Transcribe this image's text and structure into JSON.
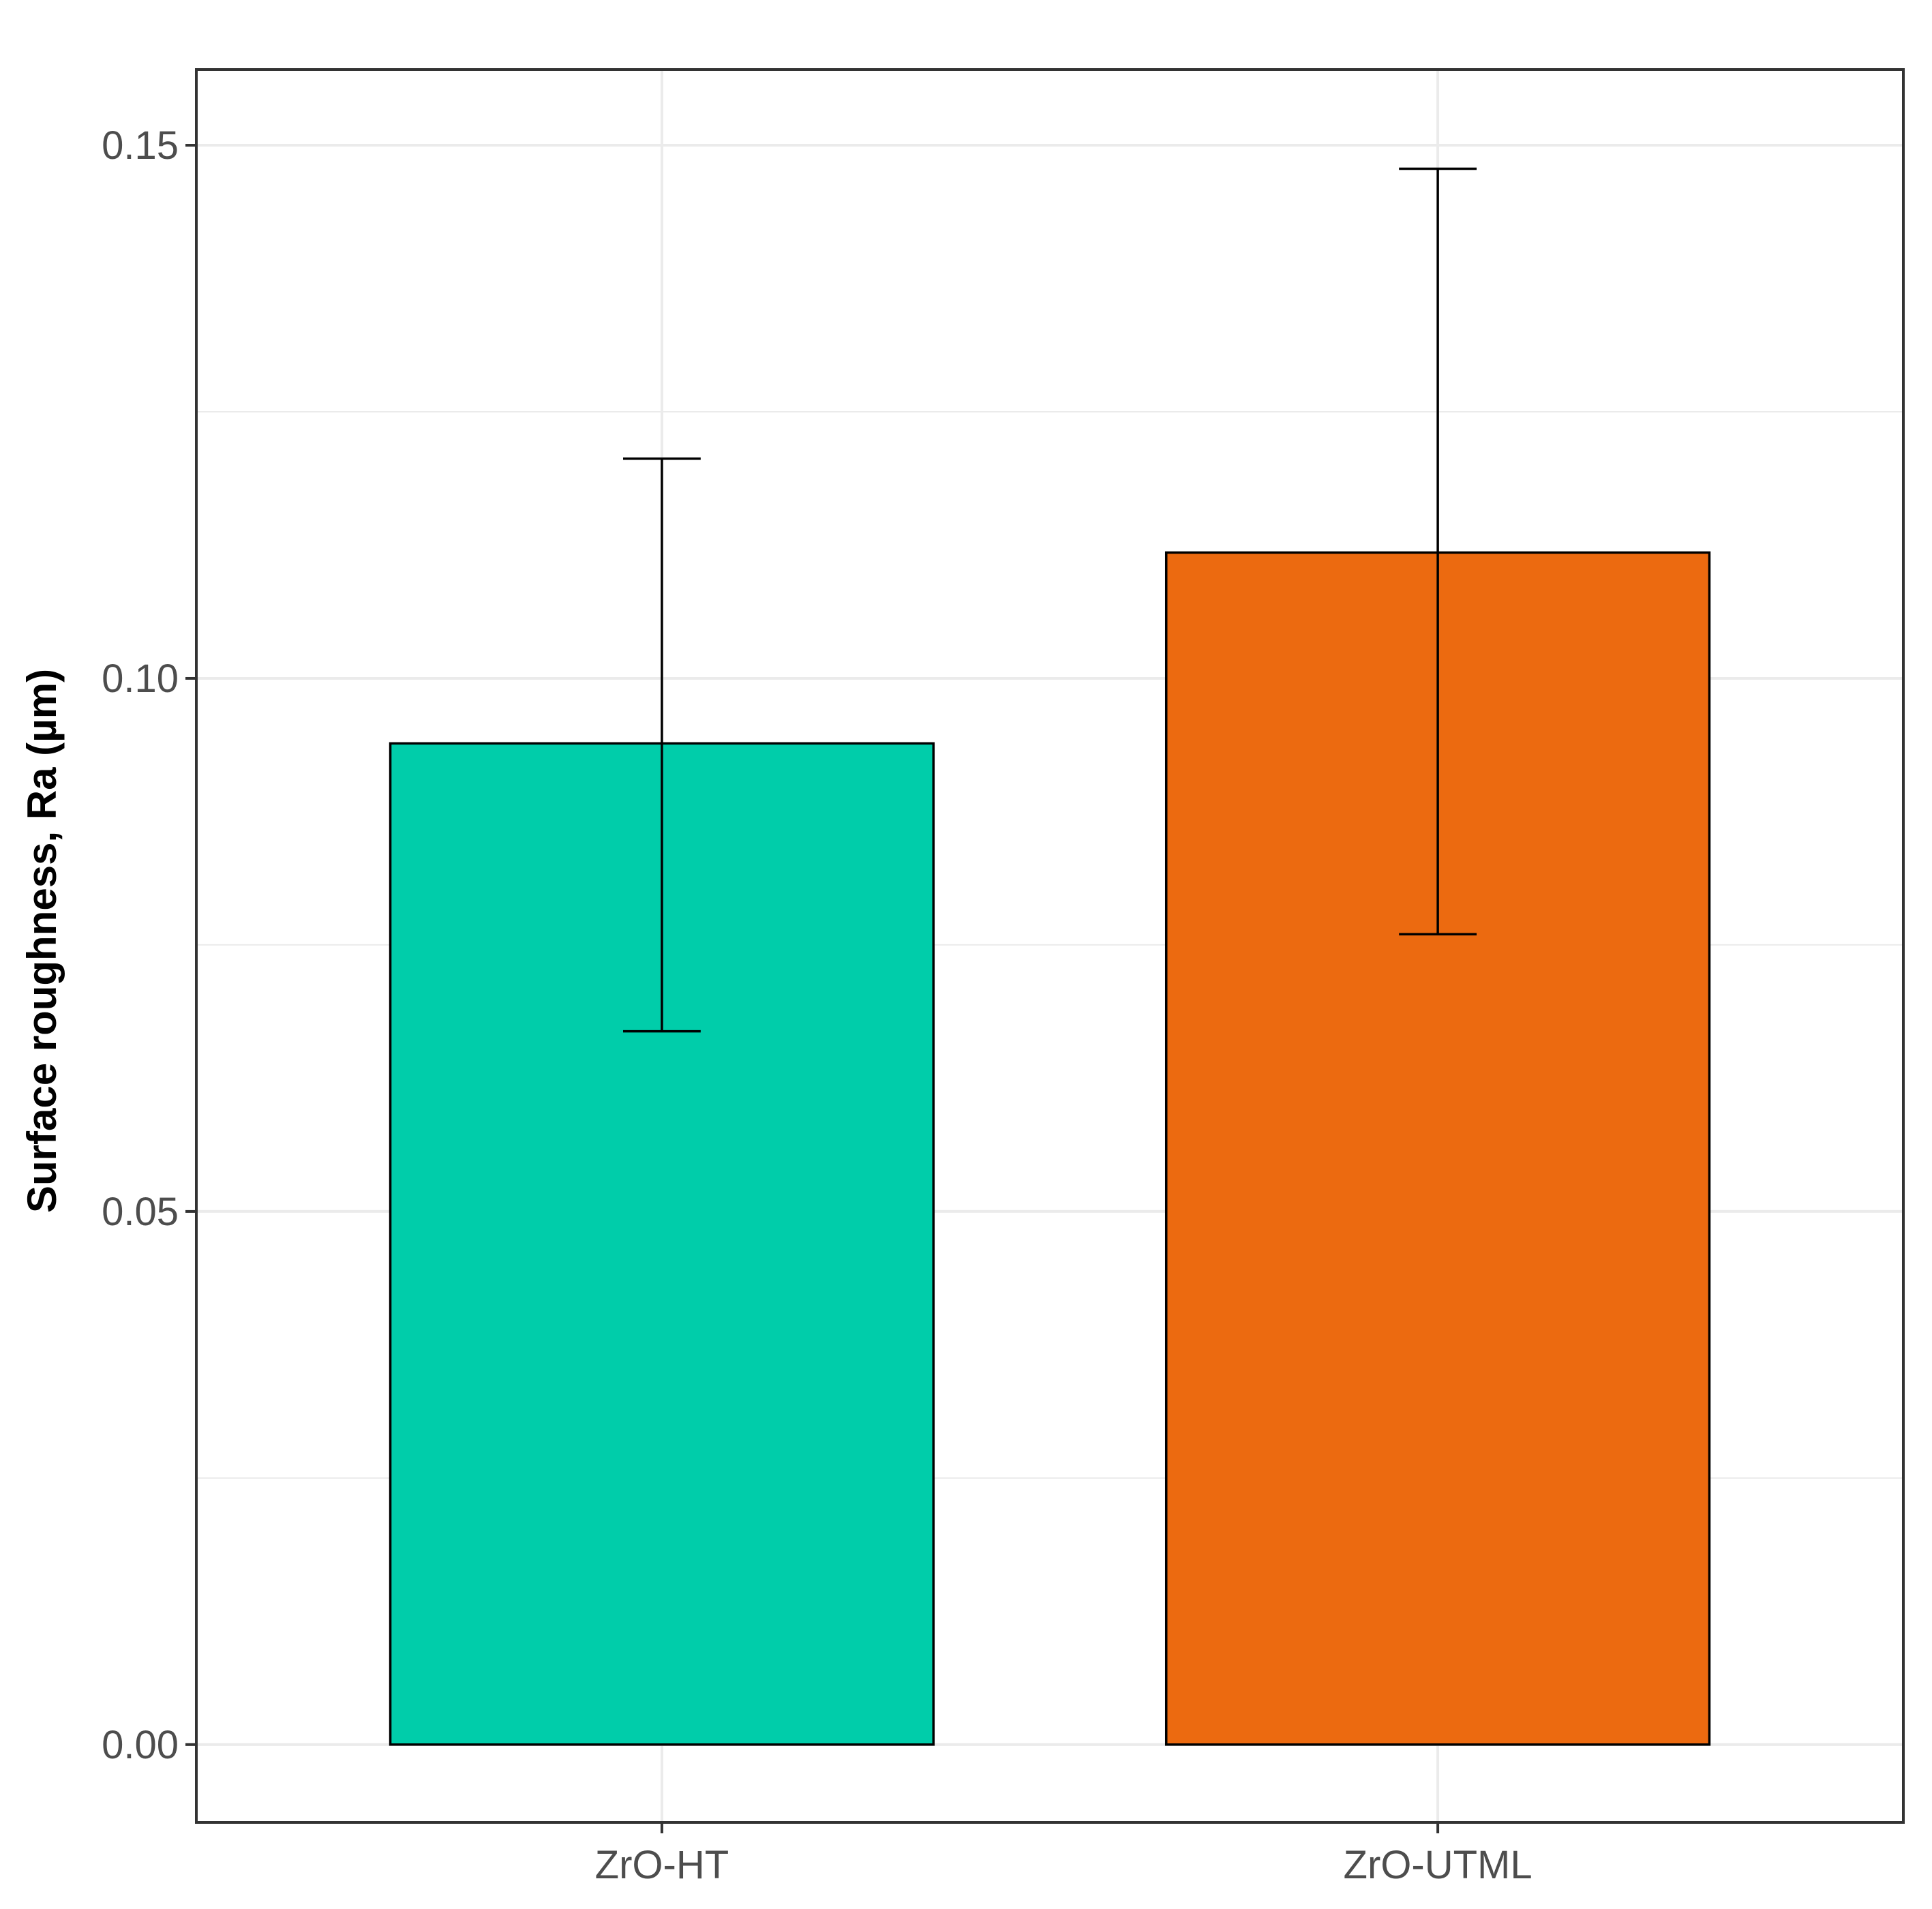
{
  "chart_data": {
    "type": "bar",
    "title": "",
    "xlabel": "",
    "ylabel": "Surface roughness, Ra (µm)",
    "categories": [
      "ZrO-HT",
      "ZrO-UTML"
    ],
    "values": [
      0.0939,
      0.1118
    ],
    "error_bars": [
      {
        "lower": 0.0669,
        "upper": 0.1206
      },
      {
        "lower": 0.076,
        "upper": 0.1478
      }
    ],
    "colors": [
      "#00CDAA",
      "#EC6A10"
    ],
    "ylim": [
      -0.0073,
      0.1571
    ],
    "y_ticks": [
      0.0,
      0.05,
      0.1,
      0.15
    ],
    "y_tick_labels": [
      "0.00",
      "0.05",
      "0.10",
      "0.15"
    ],
    "grid": true,
    "legend": "none"
  }
}
